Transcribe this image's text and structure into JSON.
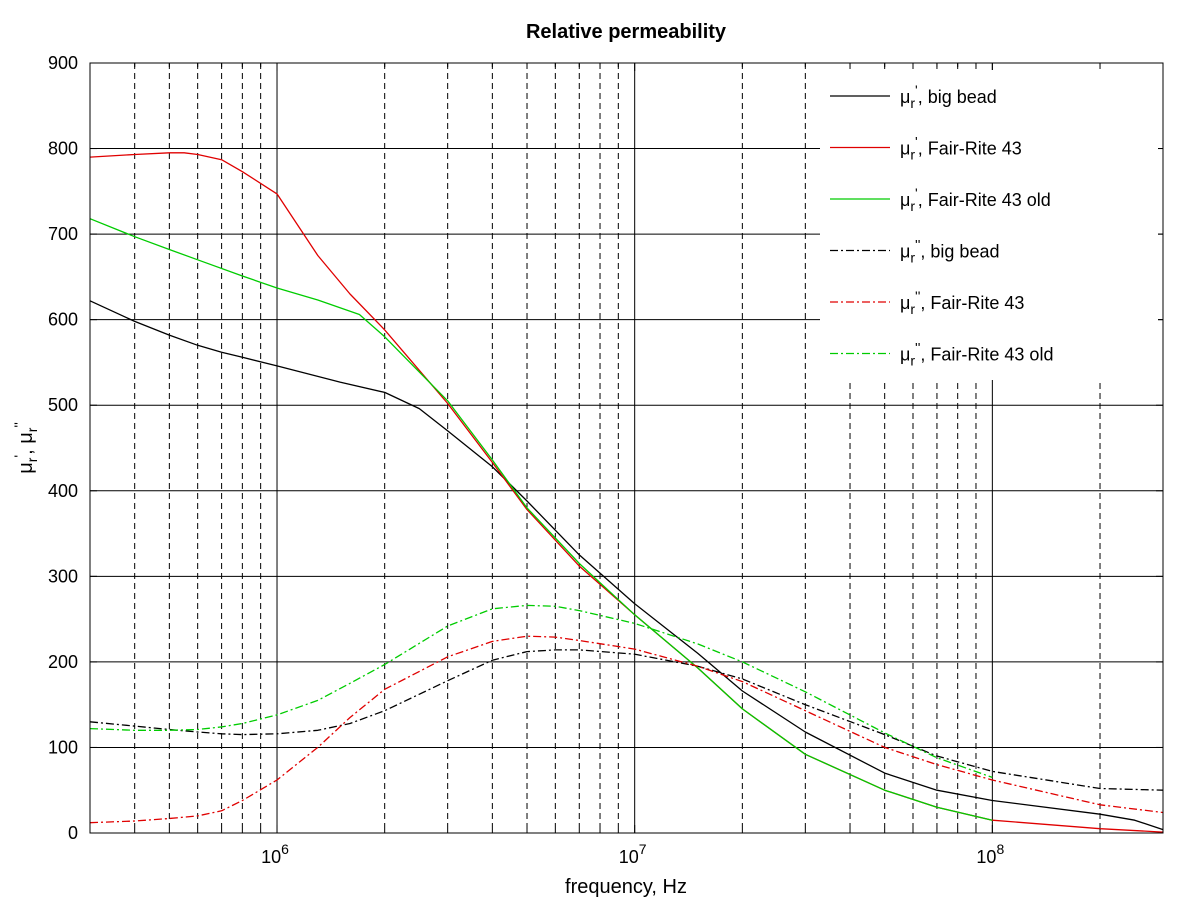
{
  "chart_data": {
    "type": "line",
    "title": "Relative permeability",
    "xlabel": "frequency, Hz",
    "ylabel": "μr', μr''",
    "x_scale": "log",
    "xlim": [
      300000,
      300000000
    ],
    "ylim": [
      0,
      900
    ],
    "y_ticks": [
      0,
      100,
      200,
      300,
      400,
      500,
      600,
      700,
      800,
      900
    ],
    "x_ticks": [
      {
        "value": 1000000,
        "mantissa": "10",
        "exponent": "6"
      },
      {
        "value": 10000000,
        "mantissa": "10",
        "exponent": "7"
      },
      {
        "value": 100000000,
        "mantissa": "10",
        "exponent": "8"
      }
    ],
    "grid": true,
    "legend_position": "top-right",
    "series": [
      {
        "name": "μr', big bead",
        "symbol": "μ",
        "sub": "r",
        "prime": "'",
        "suffix": ", big bead",
        "color": "#000000",
        "dash": "solid",
        "x": [
          300000,
          400000,
          500000,
          600000,
          700000,
          800000,
          1000000,
          1500000,
          2000000,
          2500000,
          3000000,
          4000000,
          5000000,
          7000000,
          10000000,
          15000000,
          20000000,
          30000000,
          50000000,
          70000000,
          100000000,
          200000000,
          250000000,
          300000000
        ],
        "y": [
          622,
          598,
          582,
          570,
          562,
          556,
          546,
          527,
          515,
          496,
          470,
          428,
          388,
          325,
          268,
          210,
          166,
          118,
          70,
          50,
          38,
          22,
          15,
          4
        ]
      },
      {
        "name": "μr', Fair-Rite 43",
        "symbol": "μ",
        "sub": "r",
        "prime": "'",
        "suffix": ", Fair-Rite 43",
        "color": "#e00000",
        "dash": "solid",
        "x": [
          300000,
          400000,
          500000,
          550000,
          600000,
          700000,
          800000,
          1000000,
          1300000,
          1600000,
          2000000,
          3000000,
          4000000,
          5000000,
          7000000,
          10000000,
          15000000,
          20000000,
          30000000,
          50000000,
          70000000,
          100000000,
          200000000,
          300000000
        ],
        "y": [
          790,
          793,
          795,
          795,
          793,
          787,
          773,
          747,
          675,
          630,
          588,
          502,
          433,
          378,
          312,
          255,
          193,
          145,
          92,
          50,
          30,
          15,
          5,
          1
        ]
      },
      {
        "name": "μr', Fair-Rite 43 old",
        "symbol": "μ",
        "sub": "r",
        "prime": "'",
        "suffix": ", Fair-Rite 43 old",
        "color": "#00cc00",
        "dash": "solid",
        "x": [
          300000,
          400000,
          500000,
          600000,
          800000,
          1000000,
          1300000,
          1700000,
          2000000,
          3000000,
          4000000,
          5000000,
          7000000,
          10000000,
          15000000,
          20000000,
          30000000,
          50000000,
          70000000,
          100000000
        ],
        "y": [
          718,
          697,
          682,
          670,
          651,
          637,
          623,
          606,
          580,
          505,
          436,
          380,
          315,
          255,
          193,
          145,
          92,
          50,
          30,
          15
        ]
      },
      {
        "name": "μr'', big bead",
        "symbol": "μ",
        "sub": "r",
        "prime": "''",
        "suffix": ", big bead",
        "color": "#000000",
        "dash": "dashdot",
        "x": [
          300000,
          400000,
          500000,
          600000,
          700000,
          800000,
          1000000,
          1300000,
          1600000,
          2000000,
          3000000,
          4000000,
          5000000,
          6000000,
          7000000,
          10000000,
          15000000,
          20000000,
          30000000,
          50000000,
          70000000,
          100000000,
          200000000,
          300000000
        ],
        "y": [
          130,
          125,
          121,
          118,
          116,
          115,
          116,
          120,
          128,
          143,
          178,
          202,
          212,
          214,
          214,
          209,
          195,
          180,
          150,
          115,
          90,
          72,
          52,
          50
        ]
      },
      {
        "name": "μr'', Fair-Rite 43",
        "symbol": "μ",
        "sub": "r",
        "prime": "''",
        "suffix": ", Fair-Rite 43",
        "color": "#e00000",
        "dash": "dashdot",
        "x": [
          300000,
          400000,
          500000,
          600000,
          700000,
          800000,
          1000000,
          1300000,
          1600000,
          2000000,
          3000000,
          4000000,
          5000000,
          6000000,
          7000000,
          10000000,
          15000000,
          20000000,
          30000000,
          50000000,
          70000000,
          100000000,
          200000000,
          300000000
        ],
        "y": [
          12,
          14,
          17,
          20,
          26,
          38,
          62,
          100,
          135,
          168,
          206,
          224,
          230,
          229,
          225,
          215,
          195,
          177,
          143,
          100,
          80,
          62,
          33,
          24
        ]
      },
      {
        "name": "μr'', Fair-Rite 43 old",
        "symbol": "μ",
        "sub": "r",
        "prime": "''",
        "suffix": ", Fair-Rite 43 old",
        "color": "#00cc00",
        "dash": "dashdot",
        "x": [
          300000,
          400000,
          500000,
          600000,
          700000,
          800000,
          1000000,
          1300000,
          1600000,
          2000000,
          3000000,
          4000000,
          5000000,
          6000000,
          7000000,
          10000000,
          15000000,
          20000000,
          30000000,
          50000000,
          70000000,
          100000000
        ],
        "y": [
          122,
          120,
          120,
          121,
          124,
          128,
          138,
          155,
          175,
          197,
          242,
          262,
          266,
          265,
          260,
          245,
          221,
          200,
          165,
          117,
          88,
          65
        ]
      }
    ]
  }
}
